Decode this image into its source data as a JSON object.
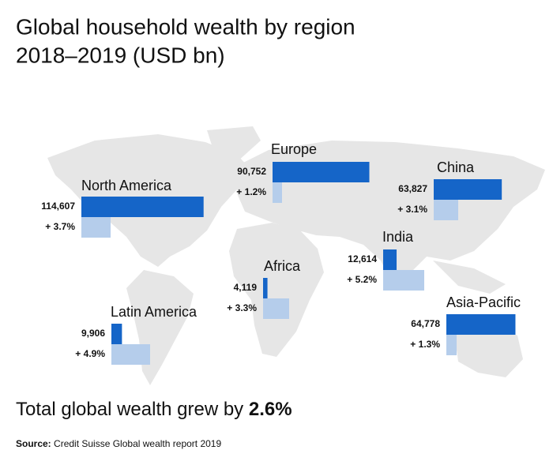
{
  "chart_data": {
    "type": "bar",
    "title": "Global household wealth by region",
    "subtitle": "2018–2019 (USD bn)",
    "categories": [
      "North America",
      "Europe",
      "China",
      "India",
      "Africa",
      "Latin America",
      "Asia-Pacific"
    ],
    "series": [
      {
        "color": "#1565c8",
        "values": [
          114607,
          90752,
          63827,
          12614,
          4119,
          9906,
          64778
        ],
        "value_labels": [
          "114,607",
          "90,752",
          "63,827",
          "12,614",
          "4,119",
          "9,906",
          "64,778"
        ]
      },
      {
        "color": "#b5cdeb",
        "values": [
          3.7,
          1.2,
          3.1,
          5.2,
          3.3,
          4.9,
          1.3
        ],
        "value_labels": [
          "+ 3.7%",
          "+ 1.2%",
          "+ 3.1%",
          "+ 5.2%",
          "+ 3.3%",
          "+ 4.9%",
          "+ 1.3%"
        ]
      }
    ],
    "total_text": "Total global wealth grew by",
    "total_value": "2.6%",
    "source_label": "Source:",
    "source": "Credit Suisse Global wealth report 2019"
  }
}
